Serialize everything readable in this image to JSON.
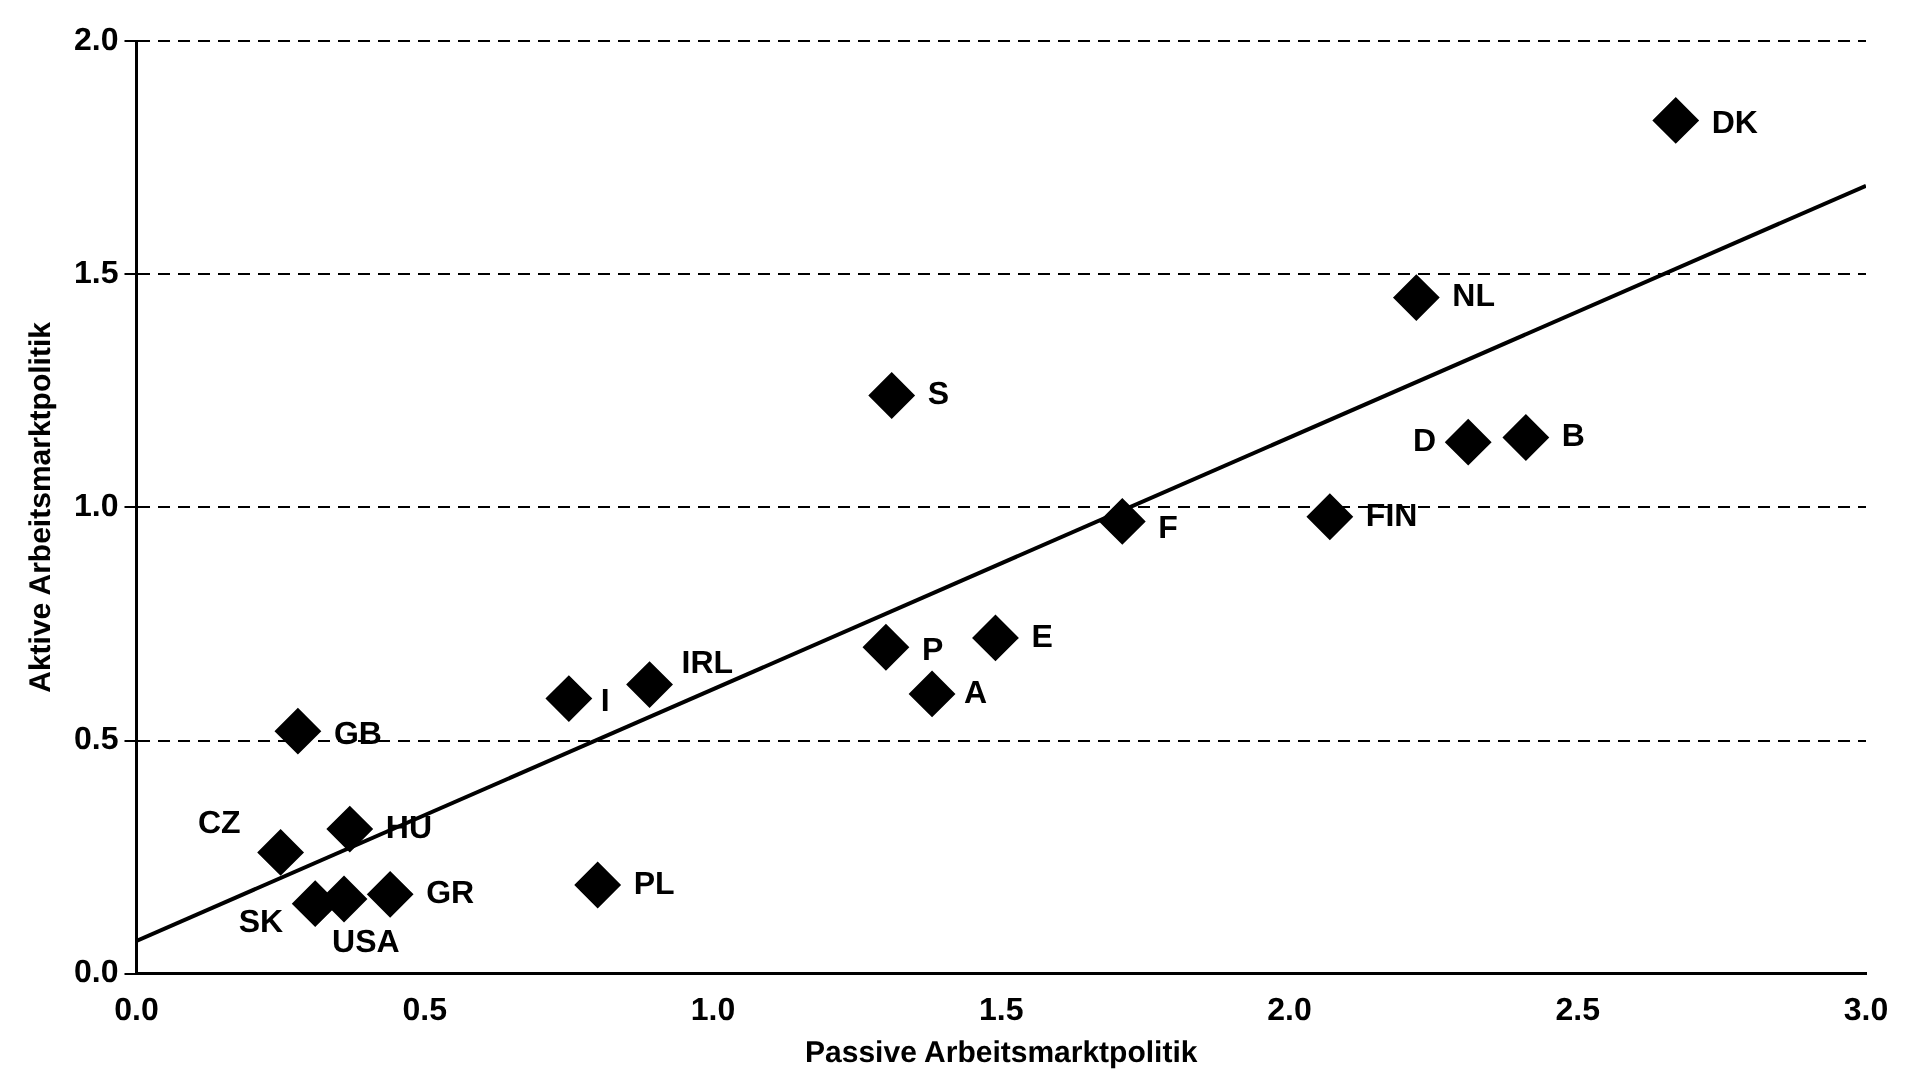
{
  "chart_data": {
    "type": "scatter",
    "xlabel": "Passive Arbeitsmarktpolitik",
    "ylabel": "Aktive Arbeitsmarktpolitik",
    "xlim": [
      0,
      3
    ],
    "xticks": [
      {
        "value": 0,
        "label": "0.0"
      },
      {
        "value": 0.5,
        "label": "0.5"
      },
      {
        "value": 1,
        "label": "1.0"
      },
      {
        "value": 1.5,
        "label": "1.5"
      },
      {
        "value": 2,
        "label": "2.0"
      },
      {
        "value": 2.5,
        "label": "2.5"
      },
      {
        "value": 3,
        "label": "3.0"
      }
    ],
    "ylim": [
      0,
      2
    ],
    "yticks": [
      {
        "value": 0,
        "label": "0.0"
      },
      {
        "value": 0.5,
        "label": "0.5"
      },
      {
        "value": 1,
        "label": "1.0"
      },
      {
        "value": 1.5,
        "label": "1.5"
      },
      {
        "value": 2,
        "label": "2.0"
      }
    ],
    "grid": "y",
    "marker": "diamond",
    "series": [
      {
        "type": "scatter",
        "color": "#000000",
        "x": [
          2.67,
          2.22,
          1.31,
          2.31,
          2.41,
          1.71,
          2.07,
          1.3,
          1.49,
          1.38,
          0.75,
          0.89,
          0.28,
          0.25,
          0.37,
          0.31,
          0.36,
          0.44,
          0.8
        ],
        "values": [
          1.83,
          1.45,
          1.24,
          1.14,
          1.15,
          0.97,
          0.98,
          0.7,
          0.72,
          0.6,
          0.59,
          0.62,
          0.52,
          0.26,
          0.31,
          0.15,
          0.16,
          0.17,
          0.19
        ]
      },
      {
        "type": "line",
        "color": "#000000",
        "marker": "none",
        "line_style": "solid",
        "x": [
          0,
          3
        ],
        "values": [
          0.07,
          1.69
        ]
      }
    ],
    "annotations": [
      {
        "text": "DK",
        "x": 2.67,
        "y": 1.83
      },
      {
        "text": "NL",
        "x": 2.22,
        "y": 1.45
      },
      {
        "text": "S",
        "x": 1.31,
        "y": 1.24
      },
      {
        "text": "D",
        "x": 2.31,
        "y": 1.14
      },
      {
        "text": "B",
        "x": 2.41,
        "y": 1.15
      },
      {
        "text": "F",
        "x": 1.71,
        "y": 0.97
      },
      {
        "text": "FIN",
        "x": 2.07,
        "y": 0.98
      },
      {
        "text": "P",
        "x": 1.3,
        "y": 0.7
      },
      {
        "text": "E",
        "x": 1.49,
        "y": 0.72
      },
      {
        "text": "A",
        "x": 1.38,
        "y": 0.6
      },
      {
        "text": "I",
        "x": 0.75,
        "y": 0.59
      },
      {
        "text": "IRL",
        "x": 0.89,
        "y": 0.62
      },
      {
        "text": "GB",
        "x": 0.28,
        "y": 0.52
      },
      {
        "text": "CZ",
        "x": 0.25,
        "y": 0.26
      },
      {
        "text": "HU",
        "x": 0.37,
        "y": 0.31
      },
      {
        "text": "SK",
        "x": 0.31,
        "y": 0.15
      },
      {
        "text": "USA",
        "x": 0.36,
        "y": 0.16
      },
      {
        "text": "GR",
        "x": 0.44,
        "y": 0.17
      },
      {
        "text": "PL",
        "x": 0.8,
        "y": 0.19
      }
    ]
  }
}
